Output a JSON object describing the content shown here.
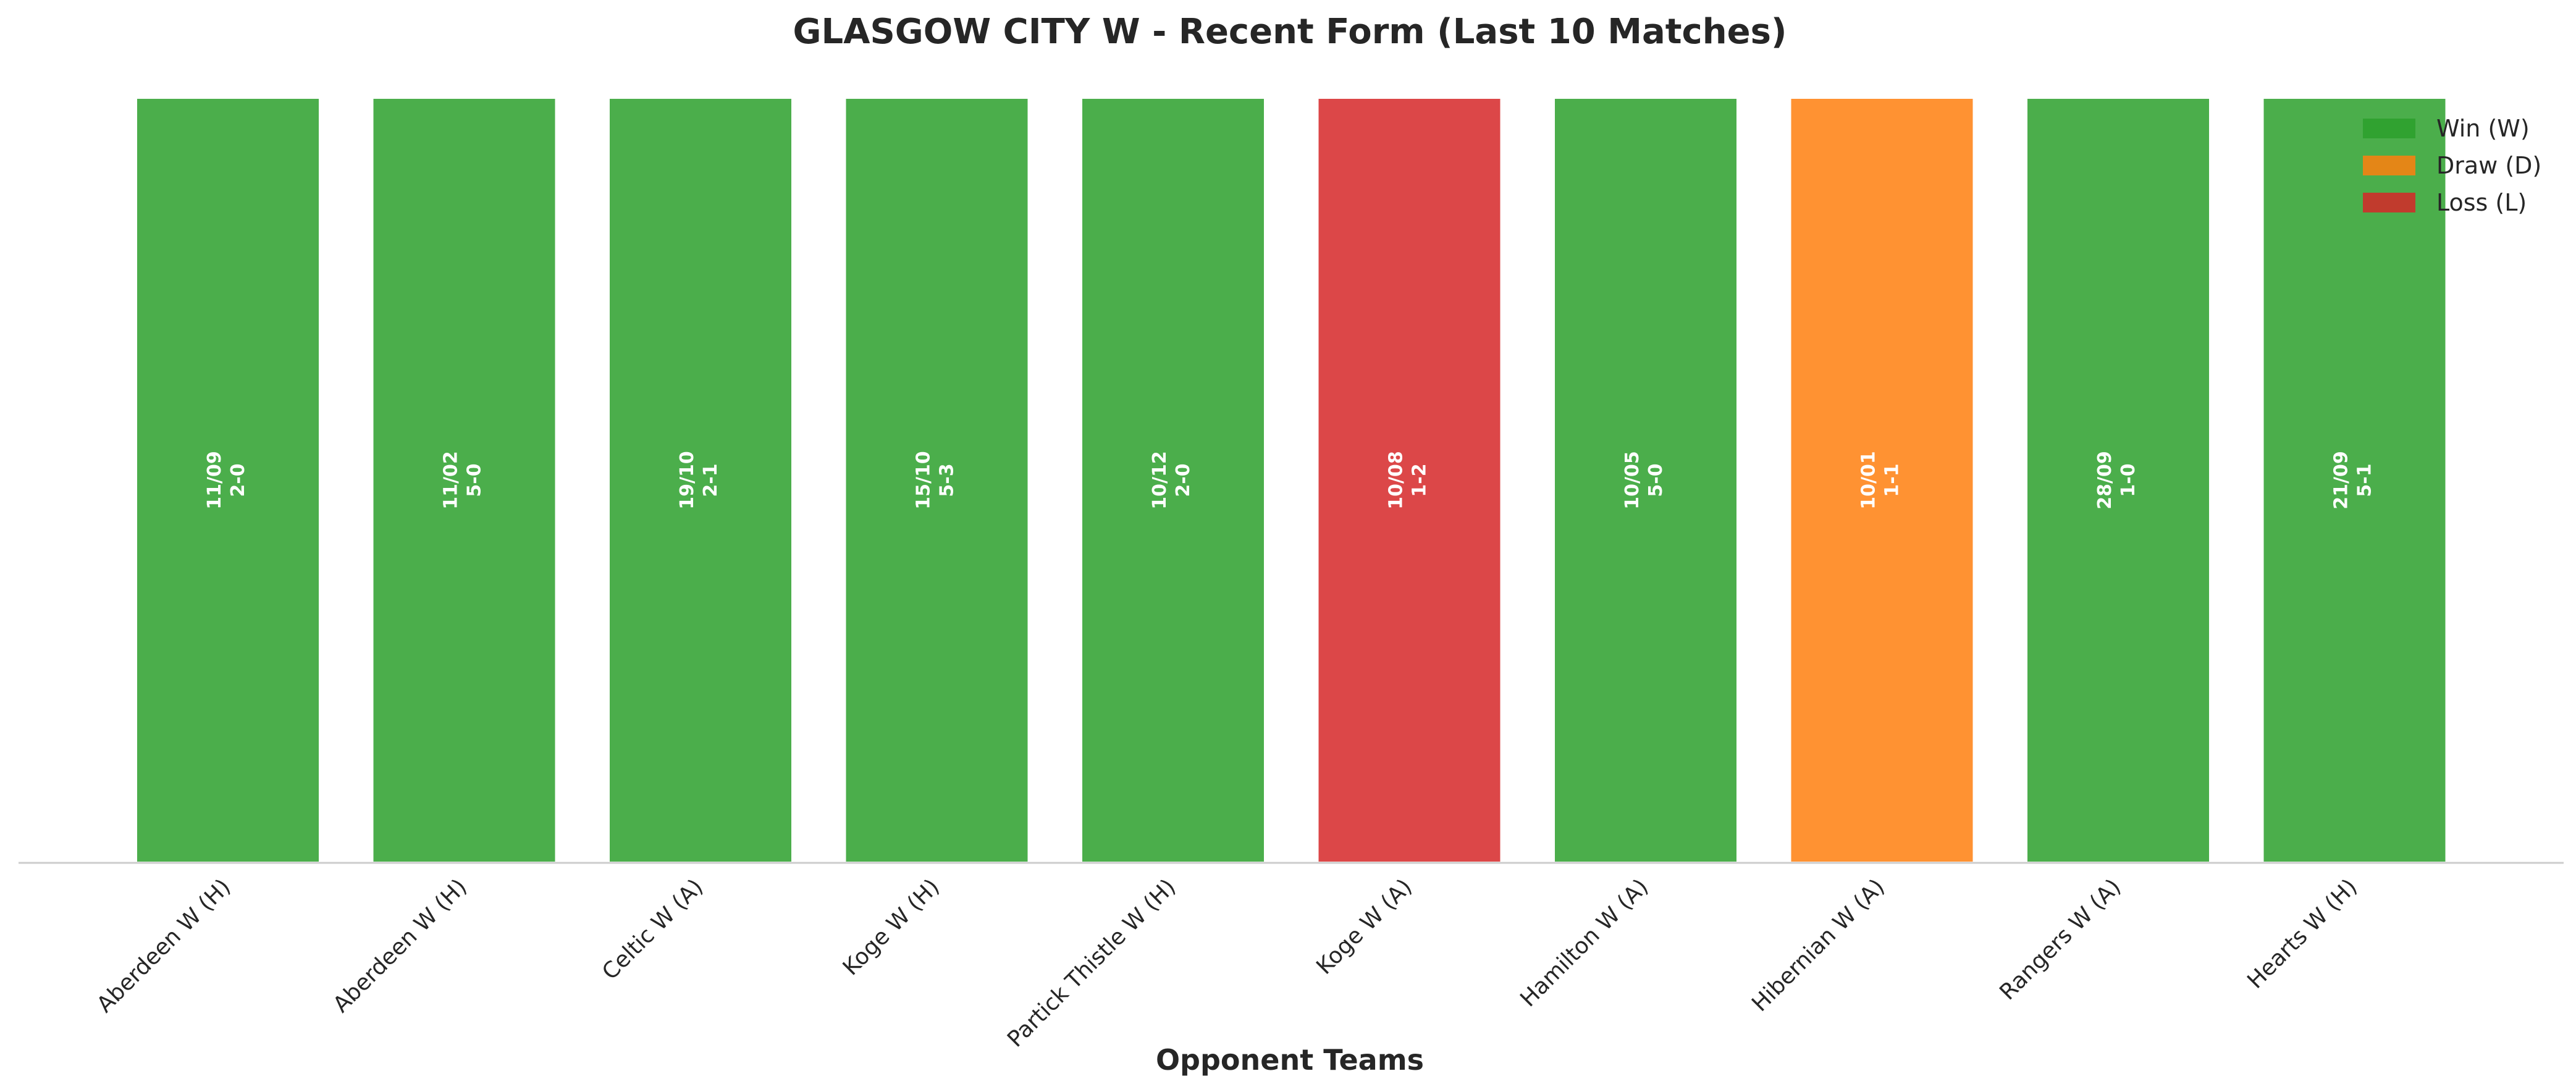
{
  "chart_data": {
    "type": "bar",
    "title": "GLASGOW CITY W - Recent Form (Last 10 Matches)",
    "xlabel": "Opponent Teams",
    "ylabel": "",
    "grid": false,
    "legend_position": "top-right",
    "categories": [
      "Aberdeen W (H)",
      "Aberdeen W (H)",
      "Celtic W (A)",
      "Koge W (H)",
      "Partick Thistle W (H)",
      "Koge W (A)",
      "Hamilton W (A)",
      "Hibernian W (A)",
      "Rangers W (A)",
      "Hearts W (H)"
    ],
    "values": [
      1,
      1,
      1,
      1,
      1,
      1,
      1,
      1,
      1,
      1
    ],
    "results": [
      "W",
      "W",
      "W",
      "W",
      "W",
      "L",
      "W",
      "D",
      "W",
      "W"
    ],
    "dates": [
      "11/09",
      "11/02",
      "19/10",
      "15/10",
      "10/12",
      "10/08",
      "10/05",
      "10/01",
      "28/09",
      "21/09"
    ],
    "scores": [
      "2-0",
      "5-0",
      "2-1",
      "5-3",
      "2-0",
      "1-2",
      "5-0",
      "1-1",
      "1-0",
      "5-1"
    ],
    "legend": [
      {
        "key": "W",
        "label": "Win (W)",
        "color": "#2ca02c"
      },
      {
        "key": "D",
        "label": "Draw (D)",
        "color": "#ff7f0e"
      },
      {
        "key": "L",
        "label": "Loss (L)",
        "color": "#d62728"
      }
    ]
  }
}
